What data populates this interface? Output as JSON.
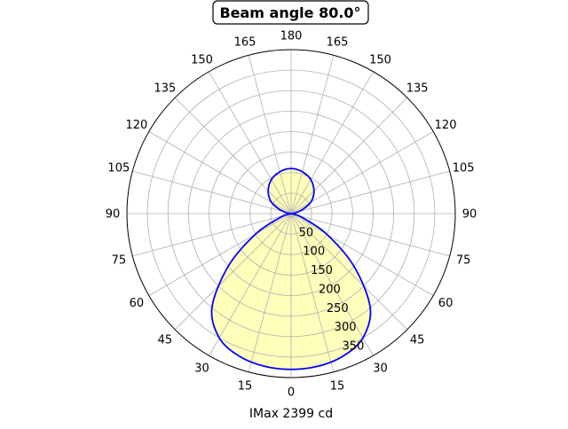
{
  "chart_data": {
    "type": "polar-line",
    "title": "Beam angle 80.0°",
    "xlabel": "IMax 2399 cd",
    "angle_tick_labels": [
      "0",
      "15",
      "30",
      "45",
      "60",
      "75",
      "90",
      "105",
      "120",
      "135",
      "150",
      "165",
      "180",
      "165",
      "150",
      "135",
      "120",
      "105",
      "90",
      "75",
      "60",
      "45",
      "30",
      "15"
    ],
    "radial_ticks": [
      50,
      100,
      150,
      200,
      250,
      300,
      350
    ],
    "rlim": [
      0,
      400
    ],
    "grid": true,
    "series": [
      {
        "color": "#0000ff",
        "fill": "#ffffbb",
        "angles_deg": [
          0,
          10,
          20,
          30,
          40,
          50,
          60,
          70,
          80,
          90,
          100,
          110,
          120,
          130,
          140,
          150,
          160,
          170,
          180
        ],
        "values": [
          380,
          378,
          370,
          350,
          300,
          200,
          100,
          30,
          5,
          0,
          10,
          30,
          55,
          72,
          85,
          96,
          103,
          108,
          110
        ]
      }
    ]
  }
}
